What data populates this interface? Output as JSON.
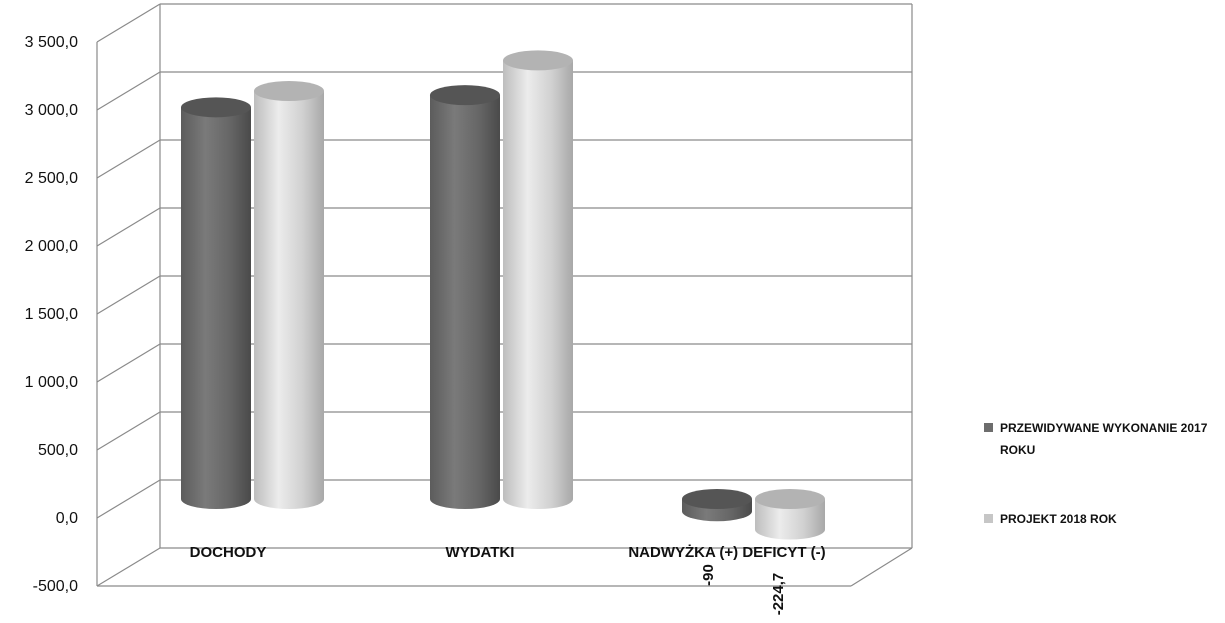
{
  "chart_data": {
    "type": "bar",
    "categories": [
      "DOCHODY",
      "WYDATKI",
      "NADWYŻKA (+)  DEFICYT (-)"
    ],
    "series": [
      {
        "name": "PRZEWIDYWANE WYKONANIE 2017 ROKU",
        "values": [
          2880,
          2970,
          -90
        ],
        "color": "#6d6d6d"
      },
      {
        "name": "PROJEKT 2018 ROK",
        "values": [
          3000,
          3225,
          -224.7
        ],
        "color": "#c6c6c6"
      }
    ],
    "data_labels": [
      {
        "series": 0,
        "category": 2,
        "text": "-90"
      },
      {
        "series": 1,
        "category": 2,
        "text": "-224,7"
      }
    ],
    "y_ticks": [
      "-500,0",
      "0,0",
      "500,0",
      "1 000,0",
      "1 500,0",
      "2 000,0",
      "2 500,0",
      "3 000,0",
      "3 500,0"
    ],
    "y_tick_values": [
      -500,
      0,
      500,
      1000,
      1500,
      2000,
      2500,
      3000,
      3500
    ],
    "ylim": [
      -500,
      3500
    ],
    "grid": true,
    "legend_position": "right",
    "chart_style": "3d-cylinder",
    "title": "",
    "xlabel": "",
    "ylabel": ""
  }
}
